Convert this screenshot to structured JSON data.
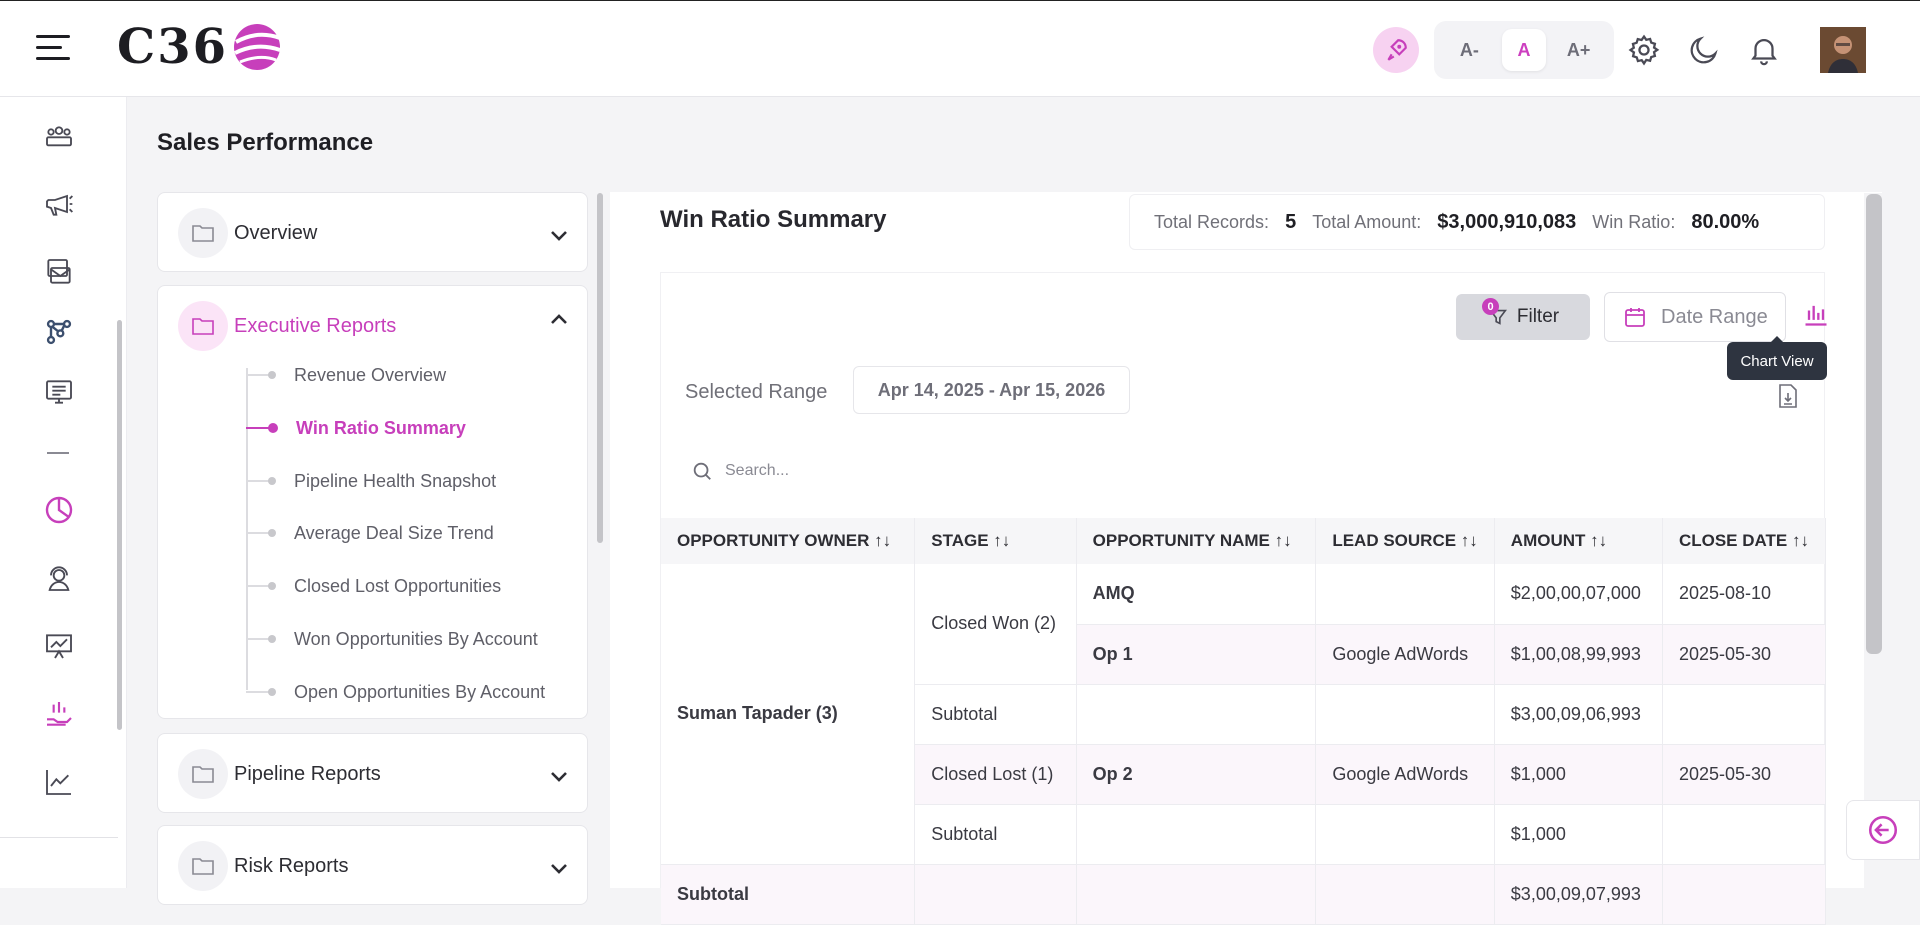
{
  "header": {
    "logo_text": "C36",
    "font_sizes": [
      "A-",
      "A",
      "A+"
    ],
    "active_font_size": "A",
    "accent_color": "#c73fbb"
  },
  "page": {
    "title": "Sales Performance"
  },
  "nav": {
    "sections": [
      {
        "label": "Overview",
        "expanded": false
      },
      {
        "label": "Executive Reports",
        "expanded": true
      },
      {
        "label": "Pipeline Reports",
        "expanded": false
      },
      {
        "label": "Risk Reports",
        "expanded": false
      }
    ],
    "executive_items": [
      "Revenue Overview",
      "Win Ratio Summary",
      "Pipeline Health Snapshot",
      "Average Deal Size Trend",
      "Closed Lost Opportunities",
      "Won Opportunities By Account",
      "Open Opportunities By Account"
    ],
    "active_item": "Win Ratio Summary"
  },
  "summary": {
    "title": "Win Ratio Summary",
    "total_records_label": "Total Records:",
    "total_records": "5",
    "total_amount_label": "Total Amount:",
    "total_amount": "$3,000,910,083",
    "win_ratio_label": "Win Ratio:",
    "win_ratio": "80.00%"
  },
  "toolbar": {
    "filter_label": "Filter",
    "filter_count": "0",
    "date_range_label": "Date Range",
    "chart_view_tooltip": "Chart View",
    "selected_range_label": "Selected Range",
    "selected_range_value": "Apr 14, 2025 - Apr 15, 2026"
  },
  "search": {
    "placeholder": "Search..."
  },
  "table": {
    "columns": [
      "OPPORTUNITY OWNER",
      "STAGE",
      "OPPORTUNITY NAME",
      "LEAD SOURCE",
      "AMOUNT",
      "CLOSE DATE"
    ],
    "owner": "Suman Tapader (3)",
    "rows": [
      {
        "stage": "Closed Won (2)",
        "name": "AMQ",
        "source": "",
        "amount": "$2,00,00,07,000",
        "date": "2025-08-10"
      },
      {
        "stage": "",
        "name": "Op 1",
        "source": "Google AdWords",
        "amount": "$1,00,08,99,993",
        "date": "2025-05-30"
      },
      {
        "stage": "Subtotal",
        "name": "",
        "source": "",
        "amount": "$3,00,09,06,993",
        "date": ""
      },
      {
        "stage": "Closed Lost (1)",
        "name": "Op 2",
        "source": "Google AdWords",
        "amount": "$1,000",
        "date": "2025-05-30"
      },
      {
        "stage": "Subtotal",
        "name": "",
        "source": "",
        "amount": "$1,000",
        "date": ""
      }
    ],
    "partial_row": {
      "owner": "Subtotal",
      "amount": "$3,00,09,07,993"
    }
  },
  "icons": {
    "rail": [
      "users-group-icon",
      "megaphone-icon",
      "mail-stack-icon",
      "network-icon",
      "monitor-list-icon",
      "minus-icon",
      "pie-chart-icon",
      "support-agent-icon",
      "presentation-chart-icon",
      "hand-chart-icon",
      "line-chart-icon"
    ]
  }
}
